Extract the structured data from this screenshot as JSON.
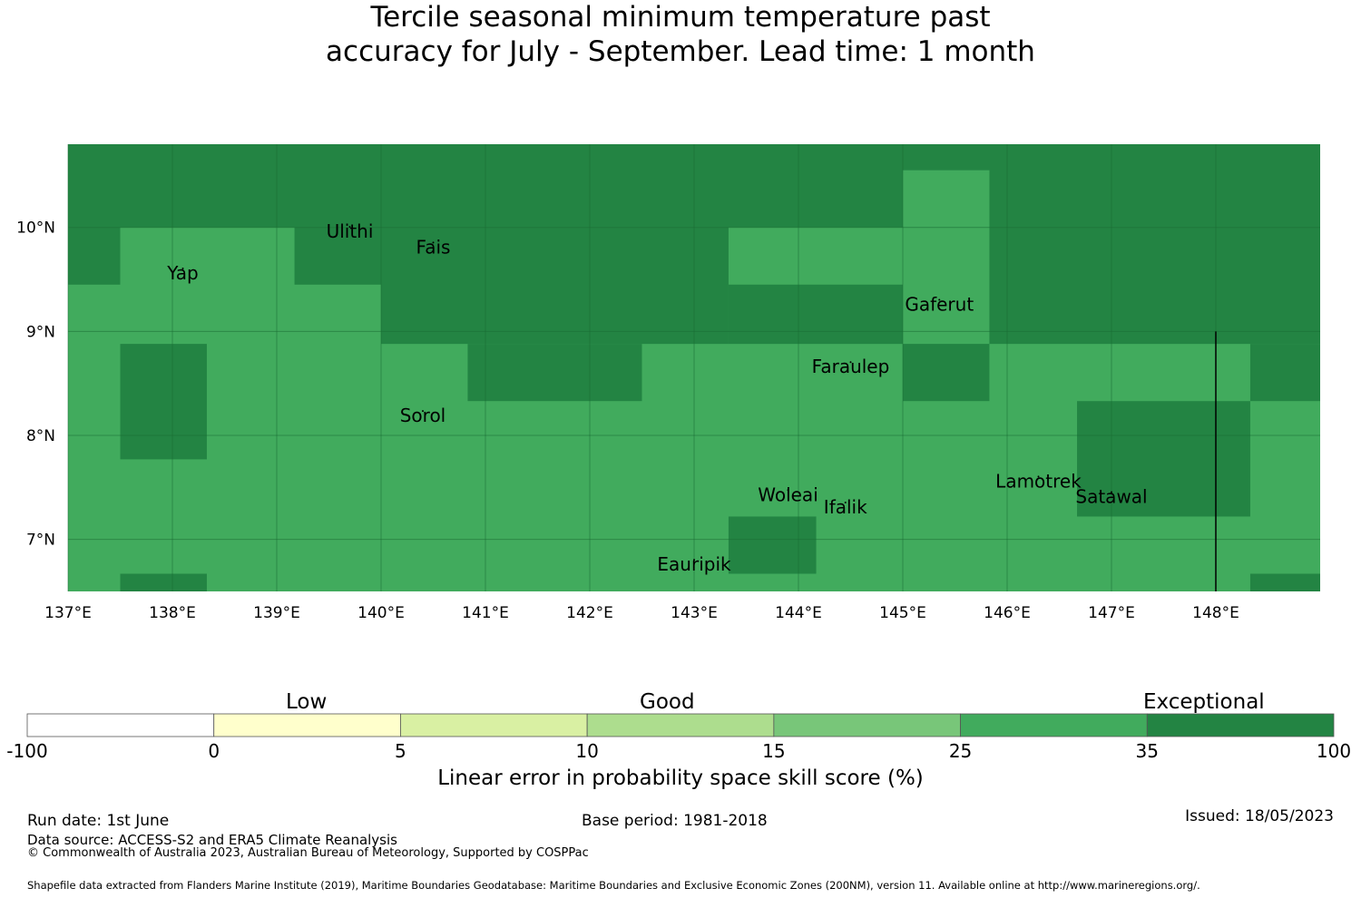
{
  "title": {
    "line1": "Tercile seasonal minimum temperature past",
    "line2": "accuracy for July - September. Lead time: 1 month"
  },
  "map": {
    "lon_range": [
      137,
      149
    ],
    "lat_range": [
      6.5,
      10.8
    ],
    "lon_ticks": [
      {
        "value": 137,
        "label": "137°E"
      },
      {
        "value": 138,
        "label": "138°E"
      },
      {
        "value": 139,
        "label": "139°E"
      },
      {
        "value": 140,
        "label": "140°E"
      },
      {
        "value": 141,
        "label": "141°E"
      },
      {
        "value": 142,
        "label": "142°E"
      },
      {
        "value": 143,
        "label": "143°E"
      },
      {
        "value": 144,
        "label": "144°E"
      },
      {
        "value": 145,
        "label": "145°E"
      },
      {
        "value": 146,
        "label": "146°E"
      },
      {
        "value": 147,
        "label": "147°E"
      },
      {
        "value": 148,
        "label": "148°E"
      }
    ],
    "lat_ticks": [
      {
        "value": 10,
        "label": "10°N"
      },
      {
        "value": 9,
        "label": "9°N"
      },
      {
        "value": 8,
        "label": "8°N"
      },
      {
        "value": 7,
        "label": "7°N"
      }
    ],
    "background_category": "25-35",
    "cells_35_100": [
      [
        137.0,
        149.0,
        10.0,
        10.8
      ],
      [
        137.0,
        137.5,
        9.45,
        10.0
      ],
      [
        139.17,
        140.0,
        9.45,
        10.0
      ],
      [
        140.0,
        143.33,
        8.88,
        10.0
      ],
      [
        143.33,
        145.0,
        8.88,
        9.45
      ],
      [
        145.83,
        149.0,
        8.88,
        10.0
      ],
      [
        137.5,
        138.33,
        7.77,
        8.88
      ],
      [
        140.83,
        142.5,
        8.33,
        8.88
      ],
      [
        145.0,
        145.83,
        8.33,
        8.88
      ],
      [
        148.33,
        149.0,
        8.33,
        8.88
      ],
      [
        146.67,
        148.33,
        7.22,
        8.33
      ],
      [
        143.33,
        144.17,
        6.67,
        7.22
      ],
      [
        137.5,
        138.33,
        6.5,
        6.67
      ],
      [
        148.33,
        149.0,
        6.5,
        6.67
      ]
    ],
    "cells_25_35": [
      [
        145.0,
        145.83,
        10.0,
        10.55
      ]
    ],
    "boundary_line": {
      "lon": 148.0,
      "lat_from": 6.5,
      "lat_to": 9.0
    },
    "places": [
      {
        "name": "Yap",
        "lon": 138.1,
        "lat": 9.5
      },
      {
        "name": "Ulithi",
        "lon": 139.7,
        "lat": 9.9
      },
      {
        "name": "Fais",
        "lon": 140.5,
        "lat": 9.75
      },
      {
        "name": "Gaferut",
        "lon": 145.35,
        "lat": 9.2
      },
      {
        "name": "Faraulep",
        "lon": 144.5,
        "lat": 8.6
      },
      {
        "name": "Sorol",
        "lon": 140.4,
        "lat": 8.13
      },
      {
        "name": "Woleai",
        "lon": 143.9,
        "lat": 7.37
      },
      {
        "name": "Ifalik",
        "lon": 144.45,
        "lat": 7.25
      },
      {
        "name": "Lamotrek",
        "lon": 146.3,
        "lat": 7.5
      },
      {
        "name": "Satawal",
        "lon": 147.0,
        "lat": 7.35
      },
      {
        "name": "Eauripik",
        "lon": 143.0,
        "lat": 6.7
      }
    ]
  },
  "colorbar": {
    "bins": [
      {
        "from": "-100",
        "to": "0",
        "color": "#ffffff"
      },
      {
        "from": "0",
        "to": "5",
        "color": "#ffffcc"
      },
      {
        "from": "5",
        "to": "10",
        "color": "#d9f0a3"
      },
      {
        "from": "10",
        "to": "15",
        "color": "#addd8e"
      },
      {
        "from": "15",
        "to": "25",
        "color": "#78c679"
      },
      {
        "from": "25",
        "to": "35",
        "color": "#41ab5d"
      },
      {
        "from": "35",
        "to": "100",
        "color": "#238443"
      }
    ],
    "tick_labels": [
      "-100",
      "0",
      "5",
      "10",
      "15",
      "25",
      "35",
      "100"
    ],
    "category_labels": {
      "low": "Low",
      "good": "Good",
      "exceptional": "Exceptional"
    },
    "title": "Linear error in probability space skill score (%)"
  },
  "footer": {
    "run_date": "Run date: 1st June",
    "base_period": "Base period: 1981-2018",
    "issued": "Issued: 18/05/2023",
    "data_source": "Data source: ACCESS-S2 and ERA5 Climate Reanalysis",
    "copyright": "© Commonwealth of Australia 2023, Australian Bureau of Meteorology, Supported by COSPPac",
    "shapefile": "Shapefile data extracted from Flanders Marine Institute (2019), Maritime Boundaries Geodatabase: Maritime Boundaries and Exclusive Economic Zones (200NM), version 11. Available online at http://www.marineregions.org/."
  },
  "colors": {
    "band_25_35": "#41ab5d",
    "band_35_100": "#238443",
    "gridline": "#1a6b33",
    "boundary": "#000000"
  }
}
